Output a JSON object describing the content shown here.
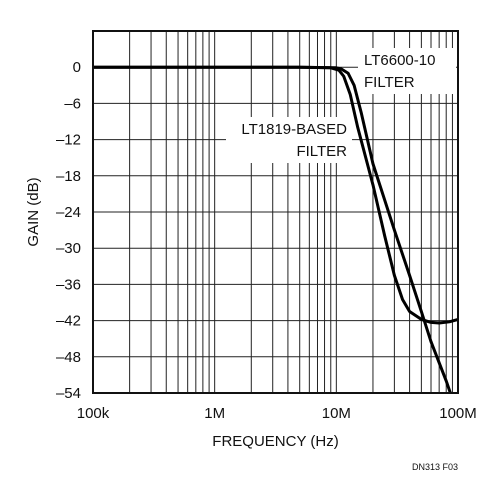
{
  "chart_data": {
    "type": "line",
    "xlabel": "FREQUENCY (Hz)",
    "ylabel": "GAIN (dB)",
    "x_scale": "log",
    "xlim": [
      "100k",
      "100M"
    ],
    "ylim": [
      -54,
      6
    ],
    "grid": true,
    "x_tick_labels": [
      "100k",
      "1M",
      "10M",
      "100M"
    ],
    "y_tick_labels": [
      "0",
      "–6",
      "–12",
      "–18",
      "–24",
      "–30",
      "–36",
      "–42",
      "–48",
      "–54"
    ],
    "y_ticks": [
      0,
      -6,
      -12,
      -18,
      -24,
      -30,
      -36,
      -42,
      -48,
      -54
    ],
    "series": [
      {
        "name": "LT6600-10 FILTER",
        "name_lines": [
          "LT6600-10",
          "FILTER"
        ],
        "points": [
          [
            100000,
            0
          ],
          [
            5000000,
            0
          ],
          [
            10000000,
            -0.1
          ],
          [
            11000000,
            -0.3
          ],
          [
            12500000,
            -1
          ],
          [
            14000000,
            -3
          ],
          [
            16000000,
            -7.5
          ],
          [
            20000000,
            -16
          ],
          [
            30000000,
            -27
          ],
          [
            40000000,
            -34.5
          ],
          [
            50000000,
            -40.5
          ],
          [
            60000000,
            -45.5
          ],
          [
            80000000,
            -52
          ],
          [
            90000000,
            -55
          ]
        ]
      },
      {
        "name": "LT1819-BASED FILTER",
        "name_lines": [
          "LT1819-BASED",
          "FILTER"
        ],
        "points": [
          [
            100000,
            0
          ],
          [
            5000000,
            0
          ],
          [
            9000000,
            -0.1
          ],
          [
            10500000,
            -0.5
          ],
          [
            11500000,
            -1.5
          ],
          [
            13000000,
            -4.5
          ],
          [
            15000000,
            -10
          ],
          [
            20000000,
            -19.5
          ],
          [
            25000000,
            -28
          ],
          [
            30000000,
            -34.5
          ],
          [
            35000000,
            -38.5
          ],
          [
            40000000,
            -40.5
          ],
          [
            50000000,
            -41.8
          ],
          [
            60000000,
            -42.3
          ],
          [
            70000000,
            -42.4
          ],
          [
            85000000,
            -42.2
          ],
          [
            100000000,
            -41.8
          ]
        ]
      }
    ],
    "figure_id": "DN313 F03"
  }
}
